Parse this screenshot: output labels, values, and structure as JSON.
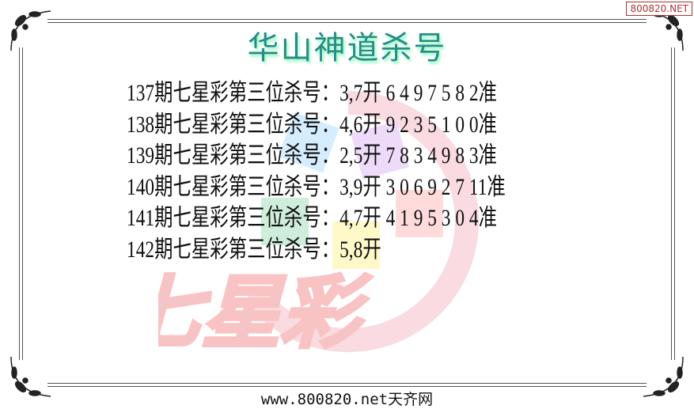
{
  "badge": "800820.NET",
  "title": "华山神道杀号",
  "rows": [
    {
      "text": "137期七星彩第三位杀号：3,7开 6 4 9 7 5 8 2准"
    },
    {
      "text": "138期七星彩第三位杀号：4,6开 9 2 3 5 1 0 0准"
    },
    {
      "text": "139期七星彩第三位杀号：2,5开 7 8 3 4 9 8 3准"
    },
    {
      "text": "140期七星彩第三位杀号：3,9开 3 0 6 9 2 7 11准"
    },
    {
      "text": "141期七星彩第三位杀号：4,7开 4 1 9 5 3 0 4准"
    },
    {
      "text": "142期七星彩第三位杀号：5,8开"
    }
  ],
  "watermark": "七星彩",
  "footer": "www.800820.net天齐网",
  "colors": {
    "title": "#2a8c88",
    "frame": "#555555",
    "badge": "#aa3333"
  }
}
